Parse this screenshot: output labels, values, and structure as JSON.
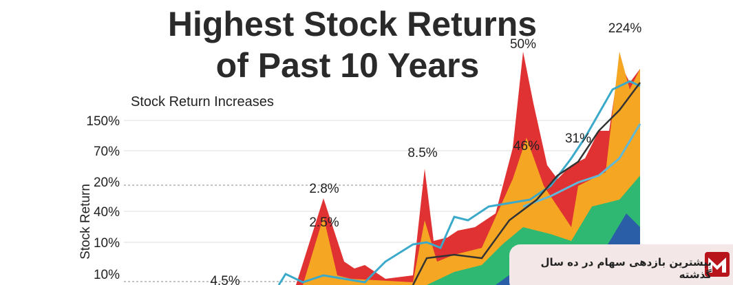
{
  "header": {
    "title_line1": "Highest Stock Returns",
    "title_line2": "of Past 10 Years",
    "subtitle": "Stock Return Increases"
  },
  "axis": {
    "label": "Stock Return",
    "tick_labels": [
      "150%",
      "70%",
      "20%",
      "40%",
      "10%",
      "10%"
    ]
  },
  "annotations": [
    "224%",
    "50%",
    "8.5%",
    "2.8%",
    "2.5%",
    "46%",
    "31%",
    "4.5%"
  ],
  "banner": {
    "text": "بیشترین بازدهی سهام در ده سال گذشته"
  }
}
